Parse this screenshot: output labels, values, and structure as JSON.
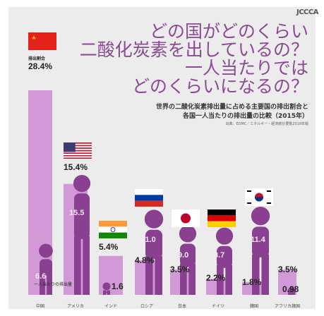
{
  "header": {
    "logo_text": "JCCCA",
    "title_lines": [
      "どの国がどのくらい",
      "二酸化炭素を出しているの？",
      "一人当たりでは",
      "どのくらいになるの？"
    ],
    "subtitle_lines": [
      "世界の二酸化炭素排出量に占める主要国の排出割合と",
      "各国一人当たりの排出量の比較（2015年）"
    ],
    "source": "出典：EDMC／エネルギー・経済統計要覧2018年版"
  },
  "colors": {
    "title": "#8c4a94",
    "share_bar": "#d19ad6",
    "per_capita_figure": "#8a4090",
    "panel": "#ececec"
  },
  "chart_data": {
    "type": "bar",
    "title": "世界の二酸化炭素排出量に占める主要国の排出割合と各国一人当たりの排出量の比較（2015年）",
    "categories": [
      "中国",
      "アメリカ",
      "インド",
      "ロシア",
      "日本",
      "ドイツ",
      "韓国",
      "アフリカ諸国"
    ],
    "series": [
      {
        "name": "排出割合",
        "values": [
          28.4,
          15.4,
          5.4,
          4.8,
          3.5,
          2.2,
          1.8,
          3.5
        ],
        "labels": [
          "28.4%",
          "15.4%",
          "5.4%",
          "4.8%",
          "3.5%",
          "2.2%",
          "1.8%",
          "3.5%"
        ]
      },
      {
        "name": "一人当たり排出量",
        "values": [
          6.6,
          15.5,
          1.6,
          11.0,
          9.0,
          8.7,
          11.4,
          0.98
        ],
        "labels": [
          "6.6",
          "15.5",
          "1.6",
          "11.0",
          "9.0",
          "8.7",
          "11.4",
          "0.98"
        ]
      }
    ],
    "annotations": {
      "china_share_caption": "排出割合",
      "china_per_capita_caption": "一人当たりの排出量"
    },
    "flags": [
      "china-flag",
      "usa-flag",
      "india-flag",
      "russia-flag",
      "japan-flag",
      "germany-flag",
      "korea-flag"
    ]
  }
}
